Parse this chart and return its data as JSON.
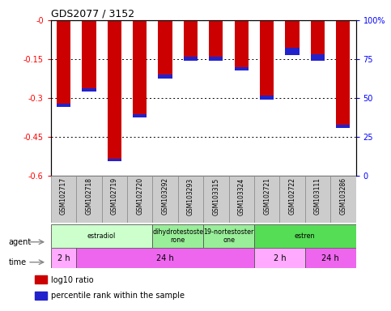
{
  "title": "GDS2077 / 3152",
  "samples": [
    "GSM102717",
    "GSM102718",
    "GSM102719",
    "GSM102720",
    "GSM103292",
    "GSM103293",
    "GSM103315",
    "GSM103324",
    "GSM102721",
    "GSM102722",
    "GSM103111",
    "GSM103286"
  ],
  "log10_ratio": [
    -0.335,
    -0.275,
    -0.545,
    -0.375,
    -0.225,
    -0.155,
    -0.155,
    -0.195,
    -0.305,
    -0.135,
    -0.155,
    -0.415
  ],
  "blue_height": [
    0.012,
    0.012,
    0.012,
    0.012,
    0.015,
    0.015,
    0.015,
    0.013,
    0.013,
    0.03,
    0.025,
    0.013
  ],
  "ylim_min": -0.6,
  "ylim_max": 0.0,
  "yticks": [
    0.0,
    -0.15,
    -0.3,
    -0.45,
    -0.6
  ],
  "ytick_labels": [
    "-0",
    "-0.15",
    "-0.3",
    "-0.45",
    "-0.6"
  ],
  "right_yticks_pct": [
    100,
    75,
    50,
    25,
    0
  ],
  "right_ytick_y": [
    0.0,
    -0.15,
    -0.3,
    -0.45,
    -0.6
  ],
  "right_ytick_labels": [
    "100%",
    "75",
    "50",
    "25",
    "0"
  ],
  "bar_color": "#cc0000",
  "pct_color": "#2222cc",
  "agent_groups": [
    {
      "label": "estradiol",
      "start": 0,
      "end": 4,
      "color": "#ccffcc"
    },
    {
      "label": "dihydrotestoste\nrone",
      "start": 4,
      "end": 6,
      "color": "#99ee99"
    },
    {
      "label": "19-nortestoster\none",
      "start": 6,
      "end": 8,
      "color": "#99ee99"
    },
    {
      "label": "estren",
      "start": 8,
      "end": 12,
      "color": "#55dd55"
    }
  ],
  "time_groups": [
    {
      "label": "2 h",
      "start": 0,
      "end": 1,
      "color": "#ffaaff"
    },
    {
      "label": "24 h",
      "start": 1,
      "end": 8,
      "color": "#ee66ee"
    },
    {
      "label": "2 h",
      "start": 8,
      "end": 10,
      "color": "#ffaaff"
    },
    {
      "label": "24 h",
      "start": 10,
      "end": 12,
      "color": "#ee66ee"
    }
  ],
  "legend_items": [
    {
      "color": "#cc0000",
      "label": "log10 ratio"
    },
    {
      "color": "#2222cc",
      "label": "percentile rank within the sample"
    }
  ],
  "bar_width": 0.55,
  "label_bg": "#cccccc"
}
